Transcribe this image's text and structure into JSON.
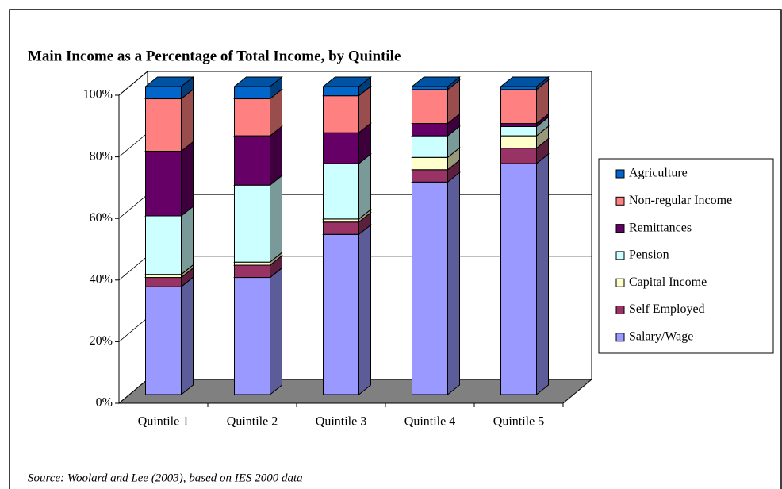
{
  "chart_data": {
    "type": "bar3d_stacked",
    "title": "Main Income as a Percentage of Total Income, by Quintile",
    "source": "Source: Woolard and Lee (2003), based on IES 2000 data",
    "categories": [
      "Quintile 1",
      "Quintile 2",
      "Quintile 3",
      "Quintile 4",
      "Quintile 5"
    ],
    "series": [
      {
        "name": "Salary/Wage",
        "color": "#9999ff",
        "values": [
          35,
          38,
          52,
          69,
          75
        ]
      },
      {
        "name": "Self Employed",
        "color": "#993366",
        "values": [
          3,
          4,
          4,
          4,
          5
        ]
      },
      {
        "name": "Capital Income",
        "color": "#ffffcc",
        "values": [
          1,
          1,
          1,
          4,
          4
        ]
      },
      {
        "name": "Pension",
        "color": "#ccffff",
        "values": [
          19,
          25,
          18,
          7,
          3
        ]
      },
      {
        "name": "Remittances",
        "color": "#660066",
        "values": [
          21,
          16,
          10,
          4,
          1
        ]
      },
      {
        "name": "Non-regular Income",
        "color": "#ff8080",
        "values": [
          17,
          12,
          12,
          11,
          11
        ]
      },
      {
        "name": "Agriculture",
        "color": "#0066cc",
        "values": [
          4,
          4,
          3,
          1,
          1
        ]
      }
    ],
    "ylim": [
      0,
      100
    ],
    "yticks": [
      {
        "value": 0,
        "label": "0%"
      },
      {
        "value": 20,
        "label": "20%"
      },
      {
        "value": 40,
        "label": "40%"
      },
      {
        "value": 60,
        "label": "60%"
      },
      {
        "value": 80,
        "label": "80%"
      },
      {
        "value": 100,
        "label": "100%"
      }
    ],
    "grid": true,
    "legend": "right",
    "floor_color": "#808080"
  }
}
